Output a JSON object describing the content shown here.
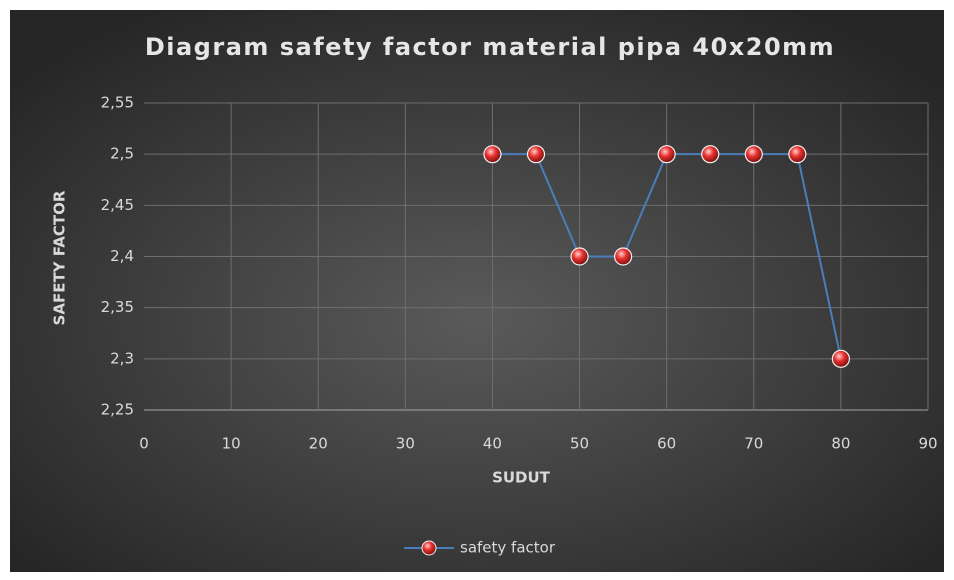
{
  "chart_data": {
    "type": "line",
    "title": "Diagram safety factor material pipa 40x20mm",
    "x_label": "SUDUT",
    "y_label": "SAFETY FACTOR",
    "x": [
      40,
      45,
      50,
      55,
      60,
      65,
      70,
      75,
      80
    ],
    "series": [
      {
        "name": "safety factor",
        "color": "#4a7ebb",
        "marker_color": "#e8322e",
        "values": [
          2.5,
          2.5,
          2.4,
          2.4,
          2.5,
          2.5,
          2.5,
          2.5,
          2.3
        ]
      }
    ],
    "xlim": [
      0,
      90
    ],
    "xticks": [
      0,
      10,
      20,
      30,
      40,
      50,
      60,
      70,
      80,
      90
    ],
    "ylim": [
      2.25,
      2.55
    ],
    "yticks": [
      {
        "value": 2.25,
        "label": "2,25"
      },
      {
        "value": 2.3,
        "label": "2,3"
      },
      {
        "value": 2.35,
        "label": "2,35"
      },
      {
        "value": 2.4,
        "label": "2,4"
      },
      {
        "value": 2.45,
        "label": "2,45"
      },
      {
        "value": 2.5,
        "label": "2,5"
      },
      {
        "value": 2.55,
        "label": "2,55"
      }
    ],
    "grid": true,
    "legend": "bottom"
  }
}
